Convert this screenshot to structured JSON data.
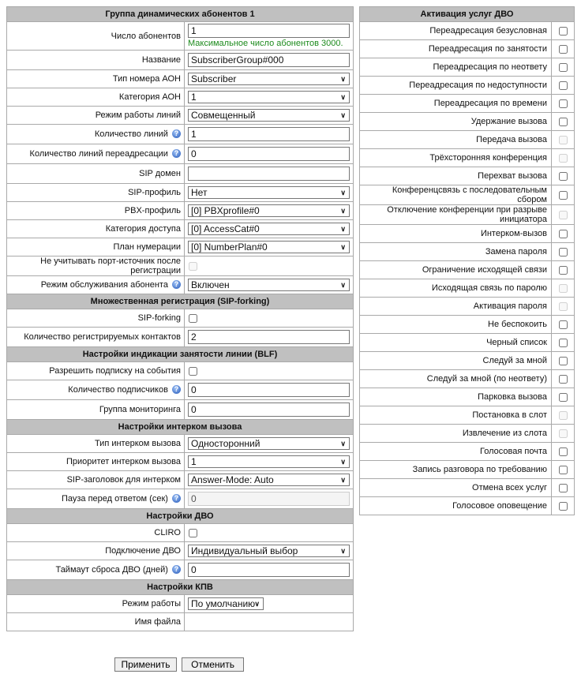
{
  "left": [
    {
      "type": "header",
      "label": "Группа динамических абонентов 1"
    },
    {
      "type": "input",
      "label": "Число абонентов",
      "value": "1",
      "hint": "Максимальное число абонентов 3000.",
      "cls": "tall"
    },
    {
      "type": "input",
      "label": "Название",
      "value": "SubscriberGroup#000",
      "cls": "mid"
    },
    {
      "type": "select",
      "label": "Тип номера АОН",
      "value": "Subscriber"
    },
    {
      "type": "select",
      "label": "Категория АОН",
      "value": "1"
    },
    {
      "type": "select",
      "label": "Режим работы линий",
      "value": "Совмещенный"
    },
    {
      "type": "input",
      "label": "Количество линий",
      "value": "1",
      "help": true,
      "cls": "mid"
    },
    {
      "type": "input",
      "label": "Количество линий переадресации",
      "value": "0",
      "help": true,
      "cls": "mid"
    },
    {
      "type": "input",
      "label": "SIP домен",
      "value": "",
      "cls": "mid"
    },
    {
      "type": "select",
      "label": "SIP-профиль",
      "value": "Нет"
    },
    {
      "type": "select",
      "label": "PBX-профиль",
      "value": "[0] PBXprofile#0"
    },
    {
      "type": "select",
      "label": "Категория доступа",
      "value": "[0] AccessCat#0"
    },
    {
      "type": "select",
      "label": "План нумерации",
      "value": "[0] NumberPlan#0"
    },
    {
      "type": "checkbox",
      "label": "Не учитывать порт-источник после регистрации",
      "checked": false,
      "disabled": true
    },
    {
      "type": "select",
      "label": "Режим обслуживания абонента",
      "value": "Включен",
      "help": true
    },
    {
      "type": "header",
      "label": "Множественная регистрация (SIP-forking)"
    },
    {
      "type": "checkbox",
      "label": "SIP-forking",
      "checked": false
    },
    {
      "type": "input",
      "label": "Количество регистрируемых контактов",
      "value": "2",
      "cls": "mid"
    },
    {
      "type": "header",
      "label": "Настройки индикации занятости линии (BLF)"
    },
    {
      "type": "checkbox",
      "label": "Разрешить подписку на события",
      "checked": false
    },
    {
      "type": "input",
      "label": "Количество подписчиков",
      "value": "0",
      "help": true,
      "cls": "mid"
    },
    {
      "type": "input",
      "label": "Группа мониторинга",
      "value": "0",
      "cls": "mid"
    },
    {
      "type": "header",
      "label": "Настройки интерком вызова"
    },
    {
      "type": "select",
      "label": "Тип интерком вызова",
      "value": "Односторонний"
    },
    {
      "type": "select",
      "label": "Приоритет интерком вызова",
      "value": "1"
    },
    {
      "type": "select",
      "label": "SIP-заголовок для интерком",
      "value": "Answer-Mode: Auto"
    },
    {
      "type": "input",
      "label": "Пауза перед ответом (сек)",
      "value": "0",
      "help": true,
      "disabled": true,
      "cls": "mid"
    },
    {
      "type": "header",
      "label": "Настройки ДВО"
    },
    {
      "type": "checkbox",
      "label": "CLIRO",
      "checked": false
    },
    {
      "type": "select",
      "label": "Подключение ДВО",
      "value": "Индивидуальный выбор"
    },
    {
      "type": "input",
      "label": "Таймаут сброса ДВО (дней)",
      "value": "0",
      "help": true,
      "cls": "mid"
    },
    {
      "type": "header",
      "label": "Настройки КПВ"
    },
    {
      "type": "select",
      "label": "Режим работы",
      "value": "По умолчанию",
      "small": true
    },
    {
      "type": "text",
      "label": "Имя файла"
    }
  ],
  "right": {
    "title": "Активация услуг ДВО",
    "services": [
      {
        "label": "Переадресация безусловная",
        "checked": false,
        "disabled": false
      },
      {
        "label": "Переадресация по занятости",
        "checked": false,
        "disabled": false
      },
      {
        "label": "Переадресация по неответу",
        "checked": false,
        "disabled": false
      },
      {
        "label": "Переадресация по недоступности",
        "checked": false,
        "disabled": false
      },
      {
        "label": "Переадресация по времени",
        "checked": false,
        "disabled": false
      },
      {
        "label": "Удержание вызова",
        "checked": false,
        "disabled": false
      },
      {
        "label": "Передача вызова",
        "checked": false,
        "disabled": true
      },
      {
        "label": "Трёхсторонняя конференция",
        "checked": false,
        "disabled": true
      },
      {
        "label": "Перехват вызова",
        "checked": false,
        "disabled": false
      },
      {
        "label": "Конференцсвязь с последовательным сбором",
        "checked": false,
        "disabled": false
      },
      {
        "label": "Отключение конференции при разрыве инициатора",
        "checked": false,
        "disabled": true
      },
      {
        "label": "Интерком-вызов",
        "checked": false,
        "disabled": false
      },
      {
        "label": "Замена пароля",
        "checked": false,
        "disabled": false
      },
      {
        "label": "Ограничение исходящей связи",
        "checked": false,
        "disabled": false
      },
      {
        "label": "Исходящая связь по паролю",
        "checked": false,
        "disabled": true
      },
      {
        "label": "Активация пароля",
        "checked": false,
        "disabled": true
      },
      {
        "label": "Не беспокоить",
        "checked": false,
        "disabled": false
      },
      {
        "label": "Черный список",
        "checked": false,
        "disabled": false
      },
      {
        "label": "Следуй за мной",
        "checked": false,
        "disabled": false
      },
      {
        "label": "Следуй за мной (по неответу)",
        "checked": false,
        "disabled": false
      },
      {
        "label": "Парковка вызова",
        "checked": false,
        "disabled": false
      },
      {
        "label": "Постановка в слот",
        "checked": false,
        "disabled": true
      },
      {
        "label": "Извлечение из слота",
        "checked": false,
        "disabled": true
      },
      {
        "label": "Голосовая почта",
        "checked": false,
        "disabled": false
      },
      {
        "label": "Запись разговора по требованию",
        "checked": false,
        "disabled": false
      },
      {
        "label": "Отмена всех услуг",
        "checked": false,
        "disabled": false
      },
      {
        "label": "Голосовое оповещение",
        "checked": false,
        "disabled": false
      }
    ]
  },
  "buttons": {
    "apply": "Применить",
    "cancel": "Отменить"
  },
  "help_icon_glyph": "?"
}
